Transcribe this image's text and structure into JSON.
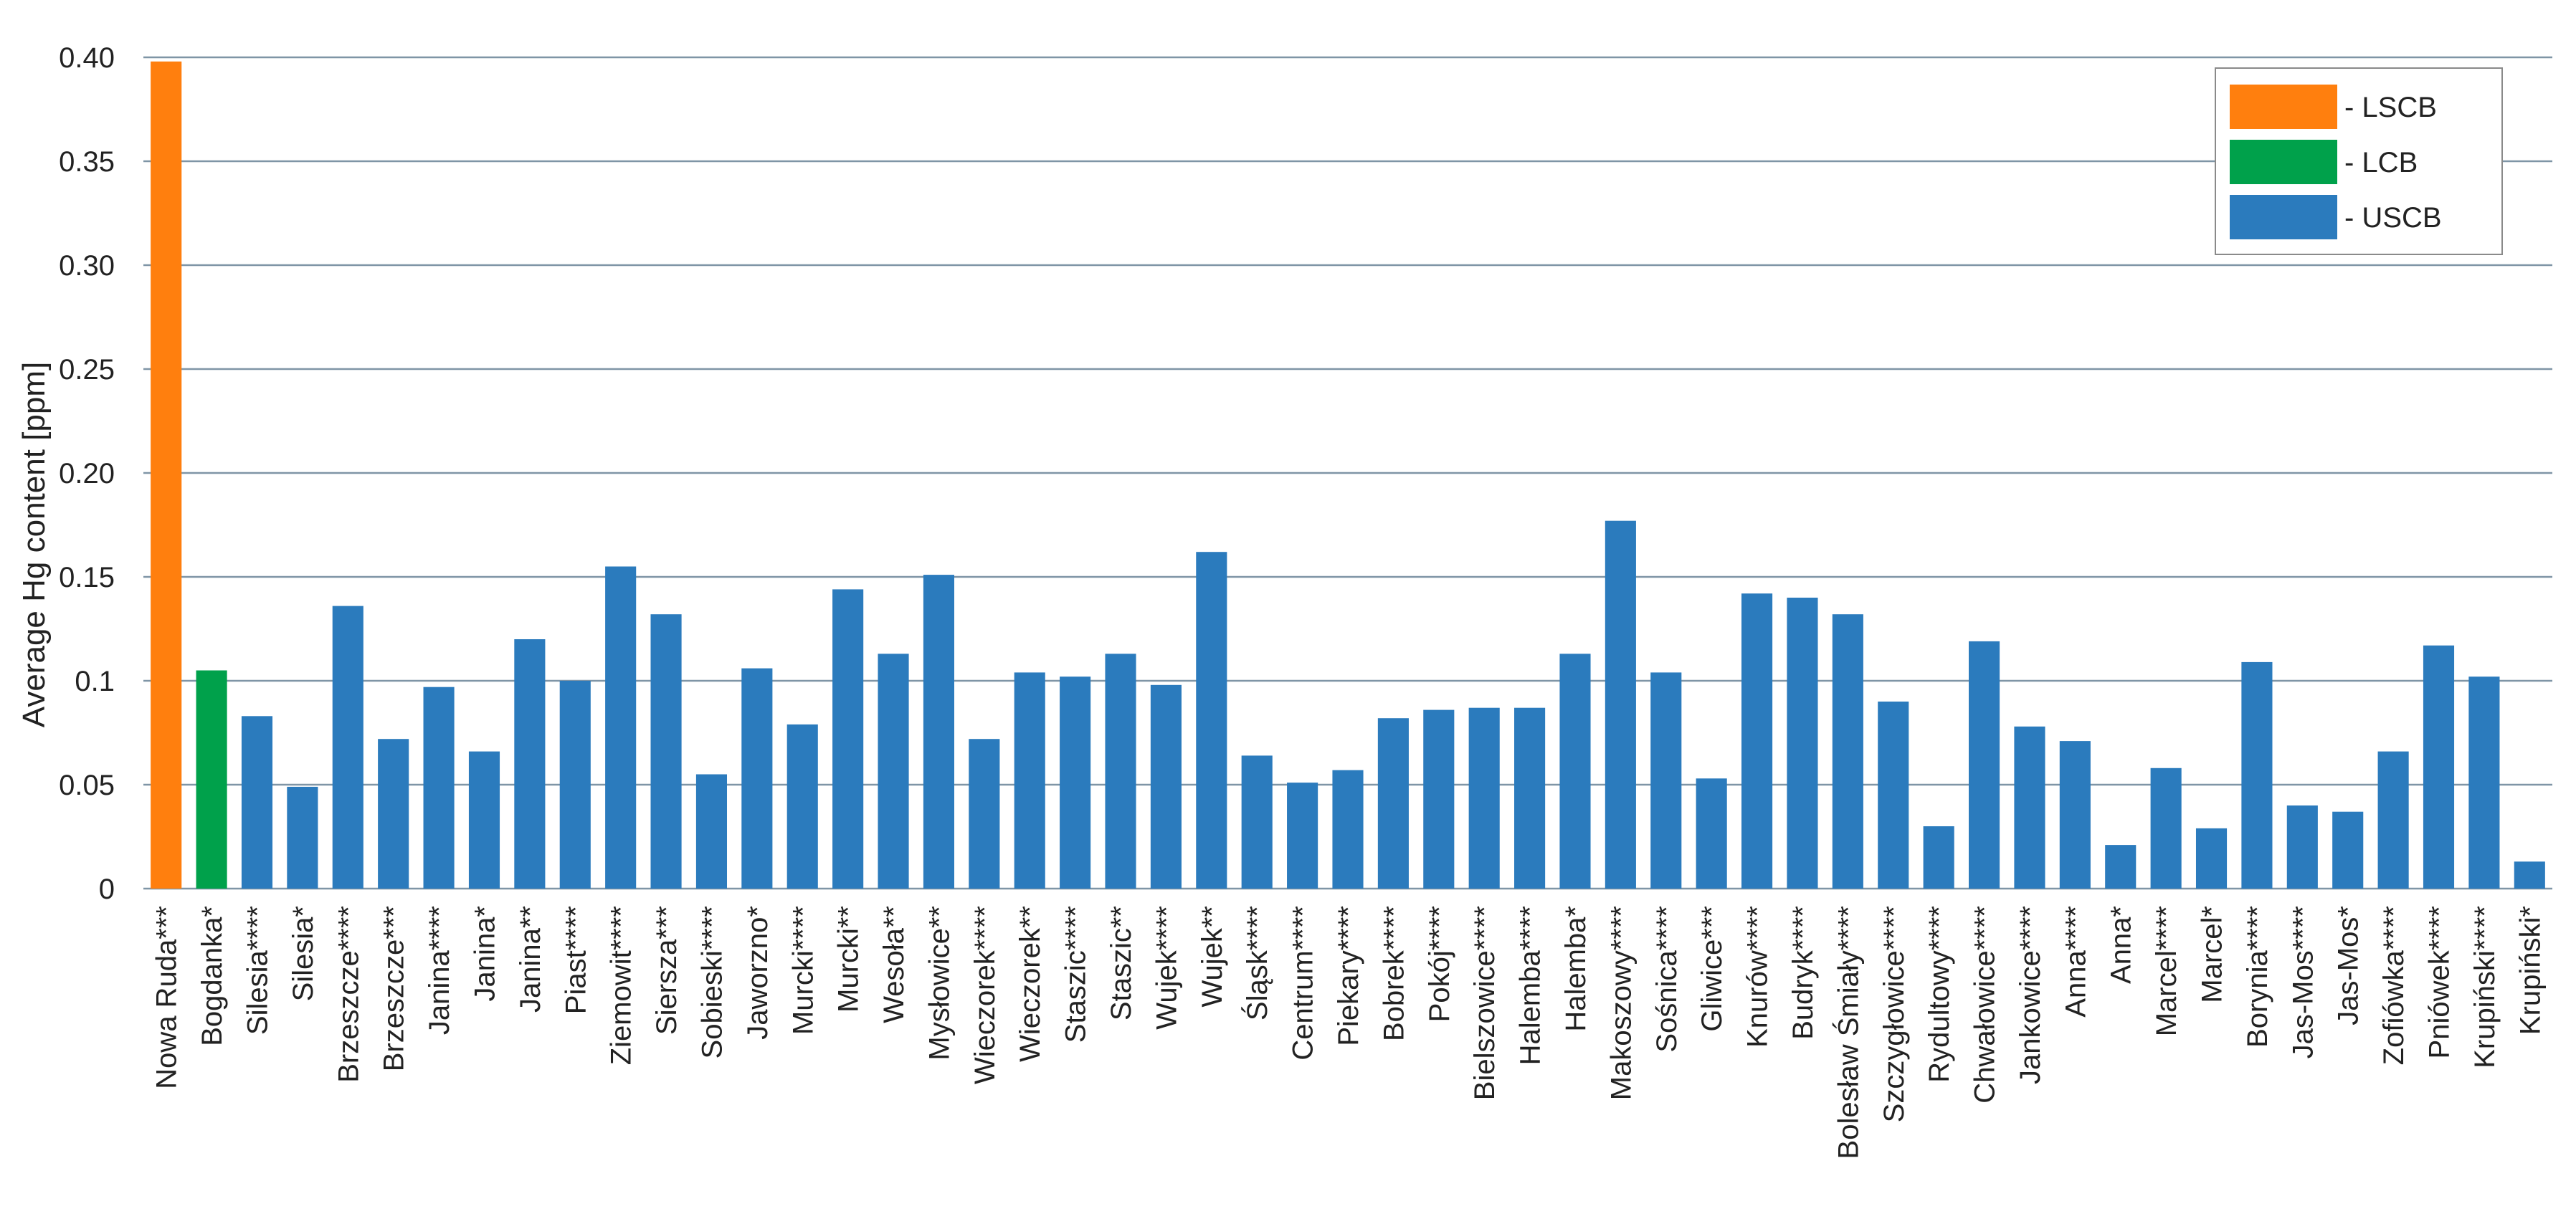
{
  "chart_data": {
    "type": "bar",
    "title": "",
    "xlabel": "",
    "ylabel": "Average Hg content  [ppm]",
    "ylim": [
      0,
      0.4
    ],
    "yticks": [
      {
        "value": 0,
        "label": "0"
      },
      {
        "value": 0.05,
        "label": "0.05"
      },
      {
        "value": 0.1,
        "label": "0.1"
      },
      {
        "value": 0.15,
        "label": "0.15"
      },
      {
        "value": 0.2,
        "label": "0.20"
      },
      {
        "value": 0.25,
        "label": "0.25"
      },
      {
        "value": 0.3,
        "label": "0.30"
      },
      {
        "value": 0.35,
        "label": "0.35"
      },
      {
        "value": 0.4,
        "label": "0.40"
      }
    ],
    "grid": true,
    "legend_position": "top-right",
    "legend": [
      {
        "key": "LSCB",
        "label": "- LSCB",
        "color": "#ff7f0e"
      },
      {
        "key": "LCB",
        "label": "- LCB",
        "color": "#00a14b"
      },
      {
        "key": "USCB",
        "label": "- USCB",
        "color": "#2b7bbd"
      }
    ],
    "categories": [
      "Nowa Ruda***",
      "Bogdanka*",
      "Silesia****",
      "Silesia*",
      "Brzeszcze****",
      "Brzeszcze***",
      "Janina****",
      "Janina*",
      "Janina**",
      "Piast****",
      "Ziemowit****",
      "Siersza***",
      "Sobieski****",
      "Jaworzno*",
      "Murcki****",
      "Murcki**",
      "Wesoła**",
      "Mysłowice**",
      "Wieczorek****",
      "Wieczorek**",
      "Staszic****",
      "Staszic**",
      "Wujek****",
      "Wujek**",
      "Śląsk****",
      "Centrum****",
      "Piekary****",
      "Bobrek****",
      "Pokój****",
      "Bielszowice****",
      "Halemba****",
      "Halemba*",
      "Makoszowy****",
      "Sośnica****",
      "Gliwice***",
      "Knurów****",
      "Budryk****",
      "Bolesław Śmiały****",
      "Szczygłowice****",
      "Rydultowy****",
      "Chwałowice****",
      "Jankowice****",
      "Anna****",
      "Anna*",
      "Marcel****",
      "Marcel*",
      "Borynia****",
      "Jas-Mos****",
      "Jas-Mos*",
      "Zofiówka****",
      "Pniówek****",
      "Krupiński****",
      "Krupiński*"
    ],
    "values": [
      0.398,
      0.105,
      0.083,
      0.049,
      0.136,
      0.072,
      0.097,
      0.066,
      0.12,
      0.1,
      0.155,
      0.132,
      0.055,
      0.106,
      0.079,
      0.144,
      0.113,
      0.151,
      0.072,
      0.104,
      0.102,
      0.113,
      0.098,
      0.162,
      0.064,
      0.051,
      0.057,
      0.082,
      0.086,
      0.087,
      0.087,
      0.113,
      0.177,
      0.104,
      0.053,
      0.142,
      0.14,
      0.132,
      0.09,
      0.03,
      0.119,
      0.078,
      0.071,
      0.021,
      0.058,
      0.029,
      0.109,
      0.04,
      0.037,
      0.066,
      0.117,
      0.102,
      0.013
    ],
    "groups": [
      "LSCB",
      "LCB",
      "USCB",
      "USCB",
      "USCB",
      "USCB",
      "USCB",
      "USCB",
      "USCB",
      "USCB",
      "USCB",
      "USCB",
      "USCB",
      "USCB",
      "USCB",
      "USCB",
      "USCB",
      "USCB",
      "USCB",
      "USCB",
      "USCB",
      "USCB",
      "USCB",
      "USCB",
      "USCB",
      "USCB",
      "USCB",
      "USCB",
      "USCB",
      "USCB",
      "USCB",
      "USCB",
      "USCB",
      "USCB",
      "USCB",
      "USCB",
      "USCB",
      "USCB",
      "USCB",
      "USCB",
      "USCB",
      "USCB",
      "USCB",
      "USCB",
      "USCB",
      "USCB",
      "USCB",
      "USCB",
      "USCB",
      "USCB",
      "USCB",
      "USCB",
      "USCB"
    ],
    "colors": {
      "gridline": "#7f95a6",
      "axis": "#555555"
    }
  }
}
